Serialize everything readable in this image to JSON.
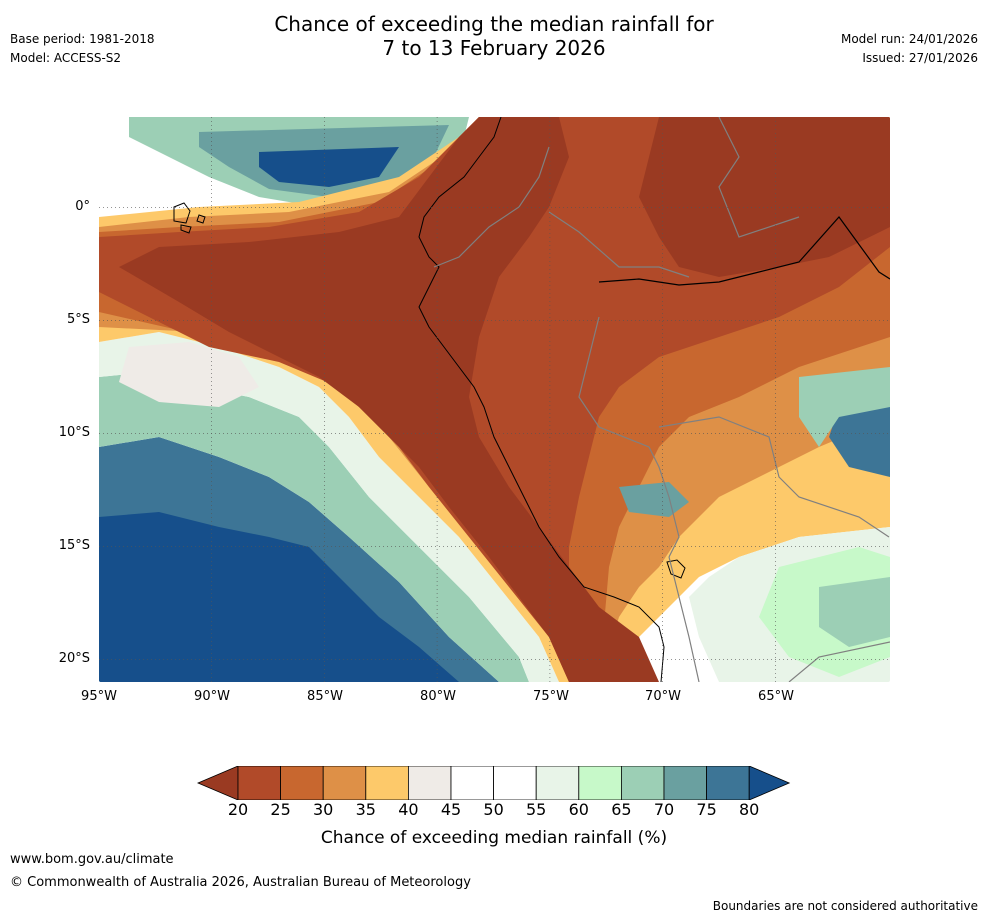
{
  "header": {
    "title_line1": "Chance of exceeding the median rainfall for",
    "title_line2": "7 to 13 February 2026",
    "base_period": "Base period: 1981-2018",
    "model": "Model: ACCESS-S2",
    "model_run": "Model run: 24/01/2026",
    "issued": "Issued: 27/01/2026"
  },
  "map": {
    "lat_labels": [
      "0°",
      "5°S",
      "10°S",
      "15°S",
      "20°S"
    ],
    "lon_labels": [
      "95°W",
      "90°W",
      "85°W",
      "80°W",
      "75°W",
      "70°W",
      "65°W"
    ],
    "extent": {
      "lon_min": -95,
      "lon_max": -60,
      "lat_min": -21,
      "lat_max": 4
    }
  },
  "colorbar": {
    "ticks": [
      "20",
      "25",
      "30",
      "35",
      "40",
      "45",
      "50",
      "55",
      "60",
      "65",
      "70",
      "75",
      "80"
    ],
    "colors": [
      "#9a3a22",
      "#b14a29",
      "#c8672f",
      "#de9047",
      "#fdc96a",
      "#efebe7",
      "#ffffff",
      "#ffffff",
      "#e8f4e8",
      "#c7f9c9",
      "#9ccfb5",
      "#6aa0a0",
      "#3d7596",
      "#164f8b"
    ],
    "label": "Chance of exceeding median rainfall (%)"
  },
  "footer": {
    "url": "www.bom.gov.au/climate",
    "copyright": "© Commonwealth of Australia 2026, Australian Bureau of Meteorology",
    "disclaimer": "Boundaries are not considered authoritative"
  }
}
